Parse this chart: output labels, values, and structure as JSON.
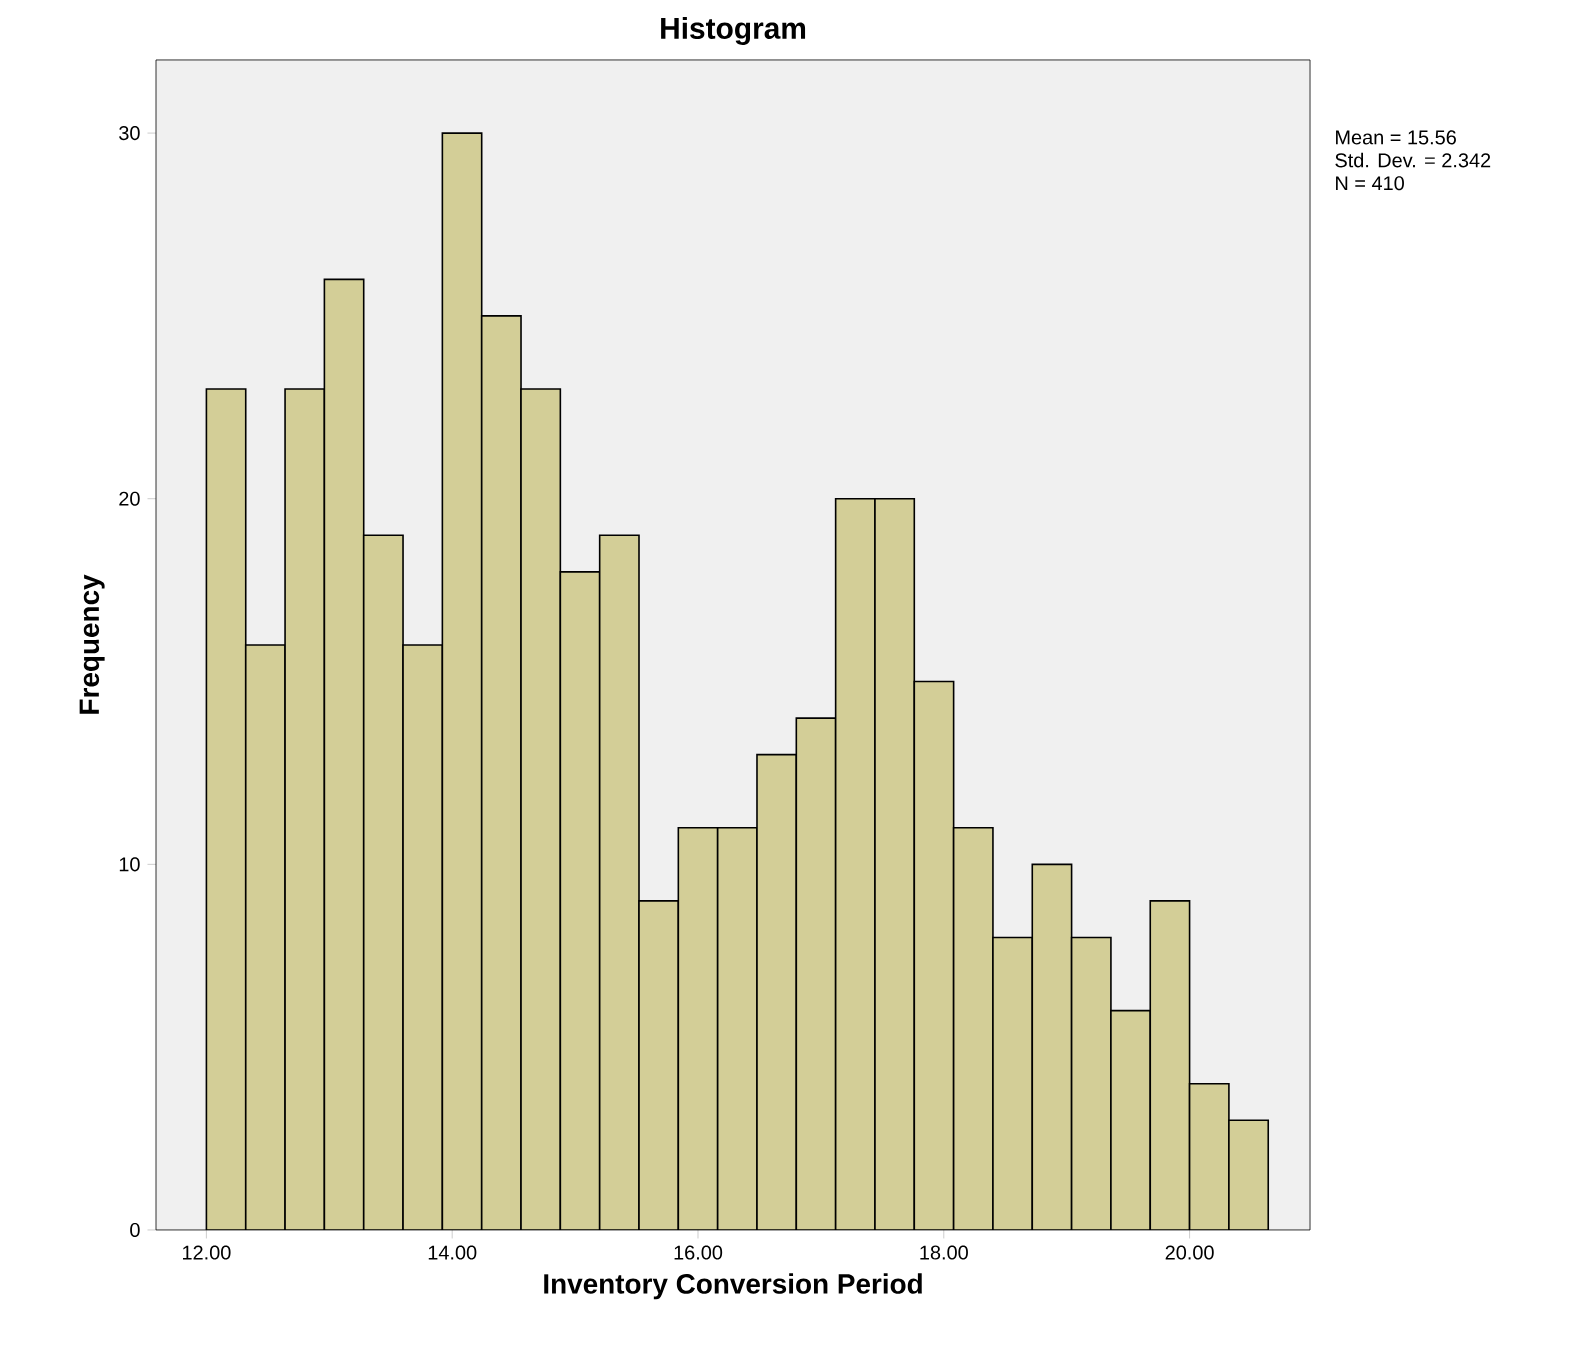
{
  "chart_data": {
    "type": "histogram",
    "title": "Histogram",
    "xlabel": "Inventory Conversion Period",
    "ylabel": "Frequency",
    "bins": [
      12.0,
      12.32,
      12.64,
      12.96,
      13.28,
      13.6,
      13.92,
      14.24,
      14.56,
      14.88,
      15.2,
      15.52,
      15.84,
      16.16,
      16.48,
      16.8,
      17.12,
      17.44,
      17.76,
      18.08,
      18.4,
      18.72,
      19.04,
      19.36,
      19.68,
      20.0,
      20.32,
      20.64
    ],
    "values": [
      23,
      16,
      23,
      26,
      19,
      16,
      30,
      25,
      23,
      18,
      19,
      9,
      11,
      11,
      13,
      14,
      20,
      20,
      15,
      11,
      8,
      10,
      8,
      6,
      9,
      4,
      3
    ],
    "color": "#d3ce97",
    "xlim": [
      11.59,
      20.98
    ],
    "ylim": [
      0,
      32
    ],
    "xticks": [
      {
        "value": 12,
        "label": "12.00"
      },
      {
        "value": 14,
        "label": "14.00"
      },
      {
        "value": 16,
        "label": "16.00"
      },
      {
        "value": 18,
        "label": "18.00"
      },
      {
        "value": 20,
        "label": "20.00"
      }
    ],
    "yticks": [
      0,
      10,
      20,
      30
    ],
    "grid": false,
    "annotations": [
      "Mean = 15.56",
      "Std. Dev. = 2.342",
      "N = 410"
    ]
  }
}
